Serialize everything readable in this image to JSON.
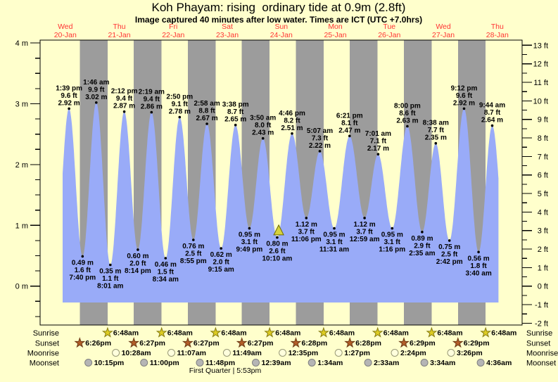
{
  "title": "Koh Phayam: rising  ordinary tide at 0.9m (2.8ft)",
  "subtitle": "Image captured 40 minutes after low water. Times are ICT (UTC +7.0hrs)",
  "colors": {
    "page_bg": "#ffffcc",
    "day_band": "#ffffcc",
    "night_band": "#9c9c9c",
    "tide_fill": "#99abf8",
    "day_label_red": "#ff3333",
    "frame": "#000000",
    "dot": "#000000",
    "current_marker_fill": "#d6d23c",
    "current_marker_stroke": "#6e6a00",
    "sunrise_icon": "#ddcc22",
    "sunrise_icon_stroke": "#857a10",
    "sunset_icon": "#b25d28",
    "sunset_icon_stroke": "#6b3a16",
    "moonrise_icon": "#ffffdd",
    "moonrise_icon_stroke": "#999977",
    "moonset_icon": "#b5b5b5",
    "moonset_icon_stroke": "#808080"
  },
  "chart_data": {
    "type": "area",
    "title": "Koh Phayam: rising ordinary tide at 0.9m (2.8ft)",
    "days": [
      {
        "weekday": "Wed",
        "date": "20-Jan"
      },
      {
        "weekday": "Thu",
        "date": "21-Jan"
      },
      {
        "weekday": "Fri",
        "date": "22-Jan"
      },
      {
        "weekday": "Sat",
        "date": "23-Jan"
      },
      {
        "weekday": "Sun",
        "date": "24-Jan"
      },
      {
        "weekday": "Mon",
        "date": "25-Jan"
      },
      {
        "weekday": "Tue",
        "date": "26-Jan"
      },
      {
        "weekday": "Wed",
        "date": "27-Jan"
      },
      {
        "weekday": "Thu",
        "date": "28-Jan"
      }
    ],
    "y_axis_left": {
      "unit": "m",
      "major_ticks": [
        4,
        3,
        2,
        1,
        0
      ]
    },
    "y_axis_right": {
      "unit": "ft",
      "major_ticks": [
        13,
        12,
        11,
        10,
        9,
        8,
        7,
        6,
        5,
        4,
        3,
        2,
        1,
        0,
        -1,
        -2
      ]
    },
    "ylim_m": [
      -0.65,
      4.05
    ],
    "tide_events": [
      {
        "day": 0,
        "type": "high",
        "time": "1:39 pm",
        "m": "2.92",
        "ft": "9.6"
      },
      {
        "day": 0,
        "type": "low",
        "time": "7:40 pm",
        "m": "0.49",
        "ft": "1.6"
      },
      {
        "day": 1,
        "type": "high",
        "time": "1:46 am",
        "m": "3.02",
        "ft": "9.9"
      },
      {
        "day": 1,
        "type": "low",
        "time": "8:01 am",
        "m": "0.35",
        "ft": "1.1"
      },
      {
        "day": 1,
        "type": "high",
        "time": "2:12 pm",
        "m": "2.87",
        "ft": "9.4"
      },
      {
        "day": 1,
        "type": "low",
        "time": "8:14 pm",
        "m": "0.60",
        "ft": "2.0"
      },
      {
        "day": 2,
        "type": "high",
        "time": "2:19 am",
        "m": "2.86",
        "ft": "9.4"
      },
      {
        "day": 2,
        "type": "low",
        "time": "8:34 am",
        "m": "0.46",
        "ft": "1.5"
      },
      {
        "day": 2,
        "type": "high",
        "time": "2:50 pm",
        "m": "2.78",
        "ft": "9.1"
      },
      {
        "day": 2,
        "type": "low",
        "time": "8:55 pm",
        "m": "0.76",
        "ft": "2.5"
      },
      {
        "day": 3,
        "type": "high",
        "time": "2:58 am",
        "m": "2.67",
        "ft": "8.8"
      },
      {
        "day": 3,
        "type": "low",
        "time": "9:15 am",
        "m": "0.62",
        "ft": "2.0"
      },
      {
        "day": 3,
        "type": "high",
        "time": "3:38 pm",
        "m": "2.65",
        "ft": "8.7"
      },
      {
        "day": 3,
        "type": "low",
        "time": "9:49 pm",
        "m": "0.95",
        "ft": "3.1"
      },
      {
        "day": 4,
        "type": "high",
        "time": "3:50 am",
        "m": "2.43",
        "ft": "8.0"
      },
      {
        "day": 4,
        "type": "low",
        "time": "10:10 am",
        "m": "0.80",
        "ft": "2.6"
      },
      {
        "day": 4,
        "type": "high",
        "time": "4:46 pm",
        "m": "2.51",
        "ft": "8.2"
      },
      {
        "day": 4,
        "type": "low",
        "time": "11:06 pm",
        "m": "1.12",
        "ft": "3.7"
      },
      {
        "day": 5,
        "type": "high",
        "time": "5:07 am",
        "m": "2.22",
        "ft": "7.3"
      },
      {
        "day": 5,
        "type": "low",
        "time": "11:31 am",
        "m": "0.95",
        "ft": "3.1"
      },
      {
        "day": 5,
        "type": "high",
        "time": "6:21 pm",
        "m": "2.47",
        "ft": "8.1"
      },
      {
        "day": 6,
        "type": "low",
        "time": "12:59 am",
        "m": "1.12",
        "ft": "3.7"
      },
      {
        "day": 6,
        "type": "high",
        "time": "7:01 am",
        "m": "2.17",
        "ft": "7.1"
      },
      {
        "day": 6,
        "type": "low",
        "time": "1:16 pm",
        "m": "0.95",
        "ft": "3.1"
      },
      {
        "day": 6,
        "type": "high",
        "time": "8:00 pm",
        "m": "2.63",
        "ft": "8.6"
      },
      {
        "day": 7,
        "type": "low",
        "time": "2:35 am",
        "m": "0.89",
        "ft": "2.9"
      },
      {
        "day": 7,
        "type": "high",
        "time": "8:38 am",
        "m": "2.35",
        "ft": "7.7"
      },
      {
        "day": 7,
        "type": "low",
        "time": "2:42 pm",
        "m": "0.75",
        "ft": "2.5"
      },
      {
        "day": 7,
        "type": "high",
        "time": "9:12 pm",
        "m": "2.92",
        "ft": "9.6"
      },
      {
        "day": 8,
        "type": "low",
        "time": "3:40 am",
        "m": "0.56",
        "ft": "1.8"
      },
      {
        "day": 8,
        "type": "high",
        "time": "9:44 am",
        "m": "2.64",
        "ft": "8.7"
      }
    ],
    "current_marker": {
      "day": 4,
      "time": "10:50 am"
    },
    "curve_extension": {
      "lead_low": {
        "t": 7.47,
        "m": 0.45
      },
      "tail_low": {
        "t": 207.9,
        "m": 0.57
      },
      "draw_start": 10.83,
      "draw_end": 204.5,
      "base_m": -0.27
    }
  },
  "astro": {
    "rows": [
      {
        "id": "sunrise",
        "label": "Sunrise",
        "icon": "sunrise-star",
        "events": [
          {
            "day": 1,
            "time": "6:48am"
          },
          {
            "day": 2,
            "time": "6:48am"
          },
          {
            "day": 3,
            "time": "6:48am"
          },
          {
            "day": 4,
            "time": "6:48am"
          },
          {
            "day": 5,
            "time": "6:48am"
          },
          {
            "day": 6,
            "time": "6:48am"
          },
          {
            "day": 7,
            "time": "6:48am"
          },
          {
            "day": 8,
            "time": "6:48am"
          }
        ]
      },
      {
        "id": "sunset",
        "label": "Sunset",
        "icon": "sunset-star",
        "events": [
          {
            "day": 0,
            "time": "6:26pm"
          },
          {
            "day": 1,
            "time": "6:27pm"
          },
          {
            "day": 2,
            "time": "6:27pm"
          },
          {
            "day": 3,
            "time": "6:27pm"
          },
          {
            "day": 4,
            "time": "6:28pm"
          },
          {
            "day": 5,
            "time": "6:28pm"
          },
          {
            "day": 6,
            "time": "6:29pm"
          },
          {
            "day": 7,
            "time": "6:29pm"
          }
        ]
      },
      {
        "id": "moonrise",
        "label": "Moonrise",
        "icon": "moonrise-circle",
        "events": [
          {
            "day": 1,
            "time": "10:28am"
          },
          {
            "day": 2,
            "time": "11:07am"
          },
          {
            "day": 3,
            "time": "11:49am"
          },
          {
            "day": 4,
            "time": "12:35pm"
          },
          {
            "day": 5,
            "time": "1:27pm"
          },
          {
            "day": 6,
            "time": "2:24pm"
          },
          {
            "day": 7,
            "time": "3:26pm"
          }
        ]
      },
      {
        "id": "moonset",
        "label": "Moonset",
        "icon": "moonset-circle",
        "events": [
          {
            "day": 0,
            "time": "10:15pm"
          },
          {
            "day": 1,
            "time": "11:00pm"
          },
          {
            "day": 2,
            "time": "11:48pm"
          },
          {
            "day": 4,
            "time": "12:39am"
          },
          {
            "day": 5,
            "time": "1:34am"
          },
          {
            "day": 6,
            "time": "2:33am"
          },
          {
            "day": 7,
            "time": "3:34am"
          },
          {
            "day": 8,
            "time": "4:36am"
          }
        ]
      }
    ],
    "moon_phase": "First Quarter | 5:53pm"
  }
}
